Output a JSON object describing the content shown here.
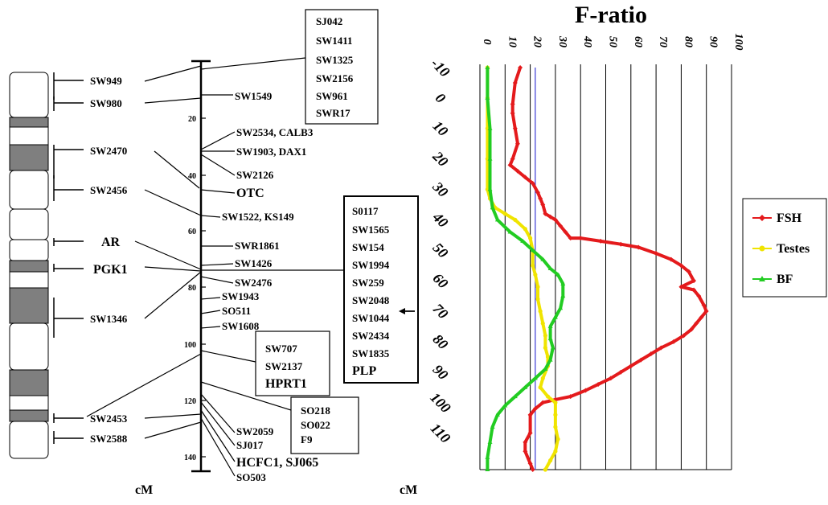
{
  "left_markers": [
    "SW949",
    "SW980",
    "SW2470",
    "SW2456",
    "AR",
    "PGK1",
    "SW1346",
    "SW2453",
    "SW2588"
  ],
  "left_axis_ticks": [
    "20",
    "40",
    "60",
    "80",
    "100",
    "120",
    "140"
  ],
  "left_axis_unit": "cM",
  "right_markers": [
    "SW1549",
    "SW2534, CALB3",
    "SW1903,  DAX1",
    "SW2126",
    "OTC",
    "SW1522,  KS149",
    "SWR1861",
    "SW1426",
    "SW2476",
    "SW1943",
    "SO511",
    "SW1608",
    "SW2059",
    "SJ017",
    "HCFC1, SJ065",
    "SO503"
  ],
  "box_top": [
    "SJ042",
    "SW1411",
    "SW1325",
    "SW2156",
    "SW961",
    "SWR17"
  ],
  "box_middle": [
    "S0117",
    "SW1565",
    "SW154",
    "SW1994",
    "SW259",
    "SW2048",
    "SW1044",
    "SW2434",
    "SW1835",
    "PLP"
  ],
  "box_hprt": [
    "SW707",
    "SW2137",
    "HPRT1"
  ],
  "box_f9": [
    "SO218",
    "SO022",
    "F9"
  ],
  "chart_data": {
    "type": "line",
    "title": "F-ratio",
    "xlabel": "",
    "ylabel": "cM",
    "x_ticks": [
      "0",
      "10",
      "20",
      "30",
      "40",
      "50",
      "60",
      "70",
      "80",
      "90",
      "100"
    ],
    "y_ticks": [
      "-10",
      "0",
      "10",
      "20",
      "30",
      "40",
      "50",
      "60",
      "70",
      "80",
      "90",
      "100",
      "110"
    ],
    "xlim": [
      0,
      100
    ],
    "ylim": [
      -10,
      122
    ],
    "y_inverted": true,
    "threshold": 22,
    "arrow_at_cm": 70,
    "grid": true,
    "legend": "right",
    "series": [
      {
        "name": "FSH",
        "color": "#e41a1c",
        "marker": "diamond",
        "points": [
          [
            16,
            -10
          ],
          [
            14,
            -5
          ],
          [
            13,
            2
          ],
          [
            13,
            5
          ],
          [
            14,
            10
          ],
          [
            15,
            15
          ],
          [
            13,
            20
          ],
          [
            12,
            22
          ],
          [
            15,
            24
          ],
          [
            18,
            26
          ],
          [
            21,
            28
          ],
          [
            23,
            31
          ],
          [
            24,
            33
          ],
          [
            25,
            35
          ],
          [
            26,
            38
          ],
          [
            28,
            39
          ],
          [
            30,
            40
          ],
          [
            32,
            42
          ],
          [
            34,
            44
          ],
          [
            36,
            46
          ],
          [
            40,
            46
          ],
          [
            48,
            47
          ],
          [
            56,
            48
          ],
          [
            63,
            49
          ],
          [
            70,
            51
          ],
          [
            76,
            53
          ],
          [
            80,
            55
          ],
          [
            83,
            57
          ],
          [
            85,
            60
          ],
          [
            80,
            62
          ],
          [
            85,
            63
          ],
          [
            87,
            65
          ],
          [
            89,
            68
          ],
          [
            90,
            70
          ],
          [
            88,
            72
          ],
          [
            86,
            74
          ],
          [
            84,
            76
          ],
          [
            81,
            78
          ],
          [
            77,
            80
          ],
          [
            72,
            82
          ],
          [
            68,
            84
          ],
          [
            64,
            86
          ],
          [
            60,
            88
          ],
          [
            56,
            90
          ],
          [
            52,
            92
          ],
          [
            47,
            94
          ],
          [
            42,
            96
          ],
          [
            36,
            98
          ],
          [
            30,
            99
          ],
          [
            25,
            100
          ],
          [
            22,
            102
          ],
          [
            20,
            104
          ],
          [
            20,
            110
          ],
          [
            18,
            113
          ],
          [
            18,
            116
          ],
          [
            20,
            120
          ],
          [
            21,
            122
          ]
        ]
      },
      {
        "name": "Testes",
        "color": "#f0e400",
        "marker": "circle",
        "points": [
          [
            3,
            -10
          ],
          [
            3,
            0
          ],
          [
            3,
            10
          ],
          [
            3,
            20
          ],
          [
            3,
            30
          ],
          [
            4,
            33
          ],
          [
            6,
            36
          ],
          [
            10,
            38
          ],
          [
            14,
            40
          ],
          [
            18,
            43
          ],
          [
            20,
            46
          ],
          [
            21,
            50
          ],
          [
            21,
            55
          ],
          [
            22,
            58
          ],
          [
            23,
            62
          ],
          [
            23,
            66
          ],
          [
            24,
            70
          ],
          [
            25,
            74
          ],
          [
            26,
            78
          ],
          [
            26,
            82
          ],
          [
            27,
            85
          ],
          [
            27,
            88
          ],
          [
            25,
            92
          ],
          [
            24,
            95
          ],
          [
            27,
            98
          ],
          [
            30,
            100
          ],
          [
            30,
            104
          ],
          [
            30,
            108
          ],
          [
            31,
            112
          ],
          [
            30,
            116
          ],
          [
            28,
            119
          ],
          [
            26,
            122
          ]
        ]
      },
      {
        "name": "BF",
        "color": "#22cc22",
        "marker": "triangle",
        "points": [
          [
            3,
            -10
          ],
          [
            3,
            0
          ],
          [
            4,
            10
          ],
          [
            4,
            20
          ],
          [
            4,
            30
          ],
          [
            5,
            36
          ],
          [
            7,
            40
          ],
          [
            12,
            44
          ],
          [
            17,
            47
          ],
          [
            21,
            50
          ],
          [
            25,
            53
          ],
          [
            28,
            56
          ],
          [
            31,
            58
          ],
          [
            33,
            61
          ],
          [
            33,
            65
          ],
          [
            32,
            69
          ],
          [
            30,
            72
          ],
          [
            28,
            75
          ],
          [
            28,
            79
          ],
          [
            29,
            82
          ],
          [
            28,
            86
          ],
          [
            26,
            89
          ],
          [
            22,
            92
          ],
          [
            18,
            95
          ],
          [
            14,
            98
          ],
          [
            10,
            101
          ],
          [
            7,
            104
          ],
          [
            5,
            108
          ],
          [
            4,
            113
          ],
          [
            3,
            118
          ],
          [
            3,
            122
          ]
        ]
      }
    ]
  }
}
